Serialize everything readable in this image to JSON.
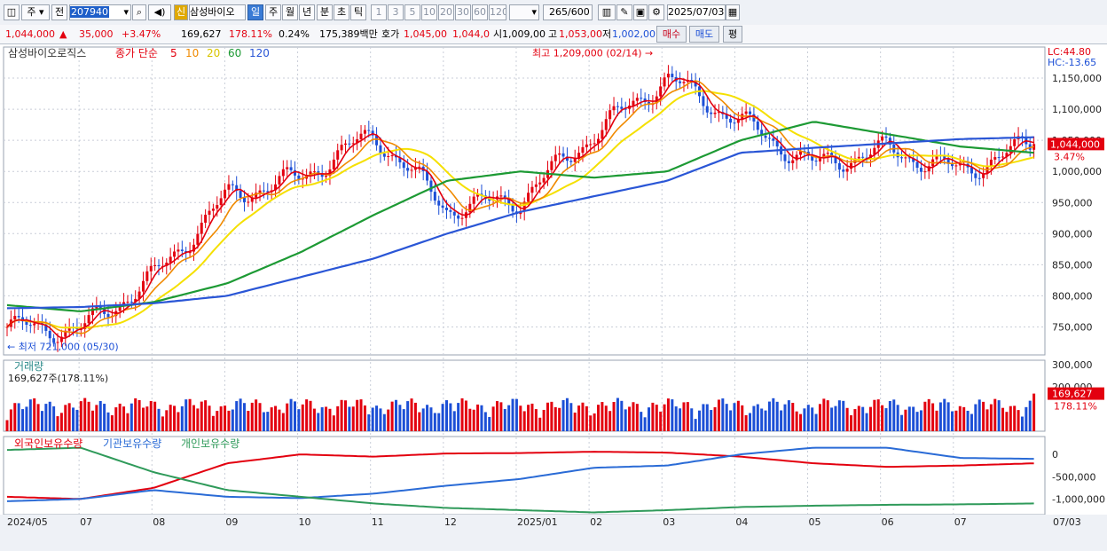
{
  "toolbar": {
    "period_word": "주",
    "prev_word": "전",
    "code": "207940",
    "name_badge": "신",
    "name": "삼성바이오",
    "periods": [
      "일",
      "주",
      "월",
      "년",
      "분",
      "초",
      "틱"
    ],
    "active_period": "일",
    "ticks": [
      "1",
      "3",
      "5",
      "10",
      "20",
      "30",
      "60",
      "120"
    ],
    "count": "265",
    "count_total": "/600",
    "date": "2025/07/03"
  },
  "quote": {
    "price": "1,044,000",
    "change": "35,000",
    "change_pct": "+3.47%",
    "volume": "169,627",
    "volume_ratio": "178.11%",
    "turnover_pct": "0.24%",
    "amount": "175,389백만",
    "bid_label": "호가",
    "bid_ask": "1,045,00",
    "bid2": "1,044,0",
    "open_label": "시",
    "open": "1,009,00",
    "high_label": "고",
    "high": "1,053,00",
    "low_label": "저",
    "low": "1,002,00",
    "buy_label": "매수",
    "sell_label": "매도",
    "avg_label": "평"
  },
  "colors": {
    "up": "#e3000f",
    "down": "#1c4fd6",
    "ma5": "#e3000f",
    "ma10": "#f08a00",
    "ma20": "#f5e000",
    "ma60": "#1d9a34",
    "ma120": "#2a56d6",
    "foreign": "#e3000f",
    "inst": "#2a6bd6",
    "retail": "#2f9a5a"
  },
  "chart_data": [
    {
      "type": "candlestick",
      "title": "삼성바이오로직스",
      "legend": [
        "종가 단순",
        "5",
        "10",
        "20",
        "60",
        "120"
      ],
      "x_labels": [
        "2024/05",
        "07",
        "08",
        "09",
        "10",
        "11",
        "12",
        "2025/01",
        "02",
        "03",
        "04",
        "05",
        "06",
        "07",
        "07/03"
      ],
      "y_ticks": [
        750000,
        800000,
        850000,
        900000,
        950000,
        1000000,
        1050000,
        1100000,
        1150000
      ],
      "y_tick_labels": [
        "750,000",
        "800,000",
        "850,000",
        "900,000",
        "950,000",
        "1,000,000",
        "1,050,000",
        "1,100,000",
        "1,150,000"
      ],
      "ylim": [
        705000,
        1200000
      ],
      "lc_label": "LC:44.80",
      "hc_label": "HC:-13.65",
      "high_annotation": "최고 1,209,000 (02/14)",
      "low_annotation": "최저 721,000 (05/30)",
      "last_price_label": "1,044,000",
      "last_change_label": "3.47%",
      "last": 1044000,
      "monthly_closes": [
        {
          "month": "2024/05",
          "close": 750000
        },
        {
          "month": "2024/06",
          "close": 745000
        },
        {
          "month": "2024/07",
          "close": 830000
        },
        {
          "month": "2024/08",
          "close": 960000
        },
        {
          "month": "2024/09",
          "close": 990000
        },
        {
          "month": "2024/10",
          "close": 1060000
        },
        {
          "month": "2024/11",
          "close": 940000
        },
        {
          "month": "2024/12",
          "close": 955000
        },
        {
          "month": "2025/01",
          "close": 1060000
        },
        {
          "month": "2025/02",
          "close": 1150000
        },
        {
          "month": "2025/03",
          "close": 1080000
        },
        {
          "month": "2025/04",
          "close": 1010000
        },
        {
          "month": "2025/05",
          "close": 1035000
        },
        {
          "month": "2025/06",
          "close": 1000000
        },
        {
          "month": "2025/07",
          "close": 1044000
        }
      ],
      "ma60_path": [
        785000,
        775000,
        790000,
        820000,
        870000,
        930000,
        985000,
        1000000,
        990000,
        1000000,
        1050000,
        1080000,
        1060000,
        1040000,
        1030000
      ],
      "ma120_path": [
        780000,
        782000,
        788000,
        800000,
        830000,
        860000,
        900000,
        935000,
        960000,
        985000,
        1030000,
        1038000,
        1045000,
        1052000,
        1055000
      ]
    },
    {
      "type": "bar",
      "title": "거래량",
      "value_label": "169,627주(178.11%)",
      "y_ticks": [
        300000,
        200000
      ],
      "y_tick_labels": [
        "300,000",
        "200,000"
      ],
      "ylim": [
        0,
        320000
      ],
      "last_value_label": "169,627",
      "last_ratio_label": "178.11%",
      "last": 169627
    },
    {
      "type": "line",
      "legend": [
        "외국인보유수량",
        "기관보유수량",
        "개인보유수량"
      ],
      "y_ticks": [
        0,
        -500000,
        -1000000
      ],
      "y_tick_labels": [
        "0",
        "-500,000",
        "-1,000,000"
      ],
      "ylim": [
        -1350000,
        400000
      ],
      "series": [
        {
          "name": "외국인보유수량",
          "values": [
            -950000,
            -1000000,
            -750000,
            -200000,
            0,
            -50000,
            20000,
            30000,
            60000,
            40000,
            -50000,
            -200000,
            -280000,
            -250000,
            -200000
          ]
        },
        {
          "name": "기관보유수량",
          "values": [
            -1050000,
            -1000000,
            -800000,
            -950000,
            -980000,
            -880000,
            -700000,
            -550000,
            -300000,
            -250000,
            0,
            150000,
            150000,
            -80000,
            -100000
          ]
        },
        {
          "name": "개인보유수량",
          "values": [
            100000,
            150000,
            -400000,
            -800000,
            -950000,
            -1100000,
            -1200000,
            -1250000,
            -1300000,
            -1250000,
            -1180000,
            -1150000,
            -1130000,
            -1120000,
            -1100000
          ]
        }
      ]
    }
  ]
}
